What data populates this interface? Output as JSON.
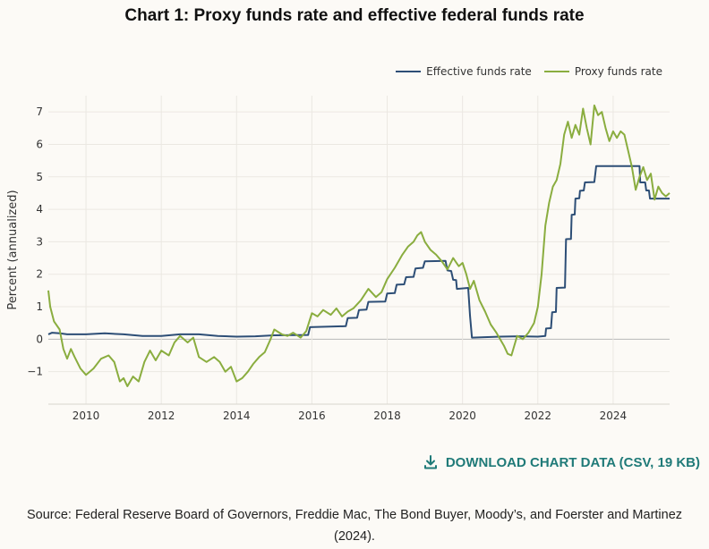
{
  "title": "Chart 1: Proxy funds rate and effective federal funds rate",
  "download_label": "DOWNLOAD CHART DATA (CSV, 19 KB)",
  "source": "Source: Federal Reserve Board of Governors, Freddie Mac, The Bond Buyer, Moody’s, and Foerster and Martinez (2024).",
  "colors": {
    "effective": "#2d4e76",
    "proxy": "#8aad3f",
    "accent": "#1f7a78"
  },
  "chart_data": {
    "type": "line",
    "ylabel": "Percent (annualized)",
    "xlabel": "",
    "xlim": [
      2009.0,
      2025.5
    ],
    "ylim": [
      -2,
      7.5
    ],
    "x_ticks": [
      2010,
      2012,
      2014,
      2016,
      2018,
      2020,
      2022,
      2024
    ],
    "y_ticks": [
      -1,
      0,
      1,
      2,
      3,
      4,
      5,
      6,
      7
    ],
    "y_tick_labels": [
      "−1",
      "0",
      "1",
      "2",
      "3",
      "4",
      "5",
      "6",
      "7"
    ],
    "grid": true,
    "legend_position": "top-right",
    "series": [
      {
        "name": "Effective funds rate",
        "x": [
          2009.0,
          2009.1,
          2009.3,
          2009.5,
          2010.0,
          2010.5,
          2011.0,
          2011.5,
          2012.0,
          2012.5,
          2013.0,
          2013.5,
          2014.0,
          2014.5,
          2015.0,
          2015.9,
          2015.95,
          2016.9,
          2016.95,
          2017.2,
          2017.25,
          2017.45,
          2017.5,
          2017.95,
          2018.0,
          2018.2,
          2018.25,
          2018.45,
          2018.5,
          2018.7,
          2018.75,
          2018.95,
          2019.0,
          2019.55,
          2019.6,
          2019.7,
          2019.75,
          2019.83,
          2019.85,
          2020.15,
          2020.2,
          2020.25,
          2021.0,
          2021.5,
          2022.0,
          2022.2,
          2022.22,
          2022.35,
          2022.38,
          2022.48,
          2022.5,
          2022.72,
          2022.75,
          2022.88,
          2022.9,
          2022.98,
          2023.0,
          2023.1,
          2023.12,
          2023.22,
          2023.25,
          2023.5,
          2023.55,
          2024.7,
          2024.72,
          2024.85,
          2024.88,
          2024.95,
          2024.98,
          2025.5
        ],
        "values": [
          0.15,
          0.2,
          0.18,
          0.15,
          0.15,
          0.18,
          0.15,
          0.1,
          0.1,
          0.15,
          0.15,
          0.1,
          0.08,
          0.09,
          0.12,
          0.13,
          0.37,
          0.4,
          0.65,
          0.66,
          0.9,
          0.91,
          1.15,
          1.16,
          1.41,
          1.42,
          1.68,
          1.69,
          1.91,
          1.92,
          2.18,
          2.2,
          2.4,
          2.41,
          2.12,
          2.1,
          1.83,
          1.82,
          1.55,
          1.58,
          0.7,
          0.05,
          0.08,
          0.09,
          0.08,
          0.1,
          0.33,
          0.34,
          0.83,
          0.84,
          1.58,
          1.59,
          3.08,
          3.09,
          3.83,
          3.84,
          4.33,
          4.34,
          4.57,
          4.58,
          4.83,
          4.84,
          5.33,
          5.33,
          4.83,
          4.83,
          4.58,
          4.58,
          4.33,
          4.33
        ]
      },
      {
        "name": "Proxy funds rate",
        "x": [
          2009.0,
          2009.05,
          2009.15,
          2009.3,
          2009.4,
          2009.5,
          2009.6,
          2009.7,
          2009.85,
          2010.0,
          2010.2,
          2010.4,
          2010.6,
          2010.75,
          2010.9,
          2011.0,
          2011.1,
          2011.25,
          2011.4,
          2011.55,
          2011.7,
          2011.85,
          2012.0,
          2012.2,
          2012.35,
          2012.5,
          2012.7,
          2012.85,
          2013.0,
          2013.2,
          2013.4,
          2013.55,
          2013.7,
          2013.85,
          2014.0,
          2014.15,
          2014.3,
          2014.45,
          2014.6,
          2014.75,
          2014.9,
          2015.0,
          2015.2,
          2015.35,
          2015.5,
          2015.7,
          2015.85,
          2016.0,
          2016.15,
          2016.3,
          2016.5,
          2016.65,
          2016.8,
          2016.95,
          2017.1,
          2017.3,
          2017.5,
          2017.7,
          2017.85,
          2018.0,
          2018.2,
          2018.4,
          2018.55,
          2018.7,
          2018.8,
          2018.9,
          2019.0,
          2019.15,
          2019.3,
          2019.45,
          2019.6,
          2019.75,
          2019.9,
          2020.0,
          2020.1,
          2020.2,
          2020.3,
          2020.45,
          2020.6,
          2020.75,
          2020.9,
          2021.0,
          2021.1,
          2021.2,
          2021.3,
          2021.45,
          2021.6,
          2021.75,
          2021.9,
          2022.0,
          2022.1,
          2022.2,
          2022.3,
          2022.4,
          2022.5,
          2022.6,
          2022.7,
          2022.8,
          2022.9,
          2023.0,
          2023.1,
          2023.2,
          2023.3,
          2023.4,
          2023.5,
          2023.6,
          2023.7,
          2023.8,
          2023.9,
          2024.0,
          2024.1,
          2024.2,
          2024.3,
          2024.4,
          2024.5,
          2024.6,
          2024.7,
          2024.8,
          2024.9,
          2025.0,
          2025.1,
          2025.2,
          2025.3,
          2025.4,
          2025.5
        ],
        "values": [
          1.5,
          1.0,
          0.55,
          0.3,
          -0.3,
          -0.6,
          -0.3,
          -0.55,
          -0.9,
          -1.1,
          -0.9,
          -0.6,
          -0.5,
          -0.7,
          -1.3,
          -1.2,
          -1.45,
          -1.15,
          -1.3,
          -0.7,
          -0.35,
          -0.65,
          -0.35,
          -0.5,
          -0.1,
          0.1,
          -0.1,
          0.05,
          -0.55,
          -0.7,
          -0.55,
          -0.7,
          -1.0,
          -0.85,
          -1.3,
          -1.2,
          -1.0,
          -0.75,
          -0.55,
          -0.4,
          0.0,
          0.3,
          0.15,
          0.1,
          0.2,
          0.05,
          0.25,
          0.8,
          0.7,
          0.9,
          0.75,
          0.95,
          0.7,
          0.85,
          0.95,
          1.2,
          1.55,
          1.3,
          1.45,
          1.85,
          2.2,
          2.6,
          2.85,
          3.0,
          3.2,
          3.3,
          3.0,
          2.75,
          2.6,
          2.4,
          2.15,
          2.5,
          2.25,
          2.35,
          2.0,
          1.55,
          1.8,
          1.2,
          0.85,
          0.45,
          0.2,
          0.0,
          -0.2,
          -0.45,
          -0.5,
          0.1,
          0.0,
          0.2,
          0.5,
          1.0,
          2.0,
          3.5,
          4.2,
          4.7,
          4.9,
          5.4,
          6.3,
          6.7,
          6.2,
          6.6,
          6.3,
          7.1,
          6.5,
          6.0,
          7.2,
          6.9,
          7.0,
          6.5,
          6.1,
          6.4,
          6.2,
          6.4,
          6.3,
          5.8,
          5.3,
          4.6,
          5.0,
          5.3,
          4.9,
          5.1,
          4.3,
          4.7,
          4.5,
          4.4,
          4.5
        ]
      }
    ]
  }
}
